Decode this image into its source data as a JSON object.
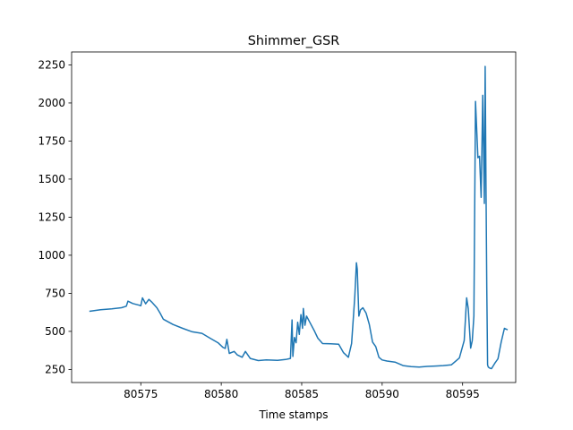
{
  "chart_data": {
    "type": "line",
    "title": "Shimmer_GSR",
    "xlabel": "Time stamps",
    "ylabel": "",
    "xlim": [
      80570.7,
      80598.3
    ],
    "ylim": [
      164,
      2335
    ],
    "xticks": [
      80575,
      80580,
      80585,
      80590,
      80595
    ],
    "yticks": [
      250,
      500,
      750,
      1000,
      1250,
      1500,
      1750,
      2000,
      2250
    ],
    "grid": false,
    "series": [
      {
        "color": "#1f77b4",
        "x": [
          80571.8,
          80572.5,
          80573.2,
          80573.8,
          80574.1,
          80574.2,
          80574.5,
          80574.9,
          80575.0,
          80575.1,
          80575.3,
          80575.5,
          80575.7,
          80576.0,
          80576.2,
          80576.4,
          80577.0,
          80577.6,
          80578.2,
          80578.8,
          80579.3,
          80579.8,
          80580.1,
          80580.25,
          80580.35,
          80580.5,
          80580.8,
          80581.0,
          80581.3,
          80581.5,
          80581.8,
          80582.3,
          80582.8,
          80583.5,
          80584.0,
          80584.3,
          80584.4,
          80584.45,
          80584.55,
          80584.65,
          80584.75,
          80584.85,
          80584.95,
          80585.05,
          80585.1,
          80585.2,
          80585.3,
          80585.5,
          80585.8,
          80586.0,
          80586.3,
          80586.8,
          80587.3,
          80587.6,
          80587.9,
          80588.1,
          80588.3,
          80588.4,
          80588.45,
          80588.55,
          80588.65,
          80588.8,
          80589.0,
          80589.2,
          80589.4,
          80589.6,
          80589.8,
          80590.0,
          80590.3,
          80590.8,
          80591.3,
          80591.8,
          80592.3,
          80592.8,
          80593.3,
          80593.8,
          80594.3,
          80594.8,
          80595.1,
          80595.25,
          80595.35,
          80595.5,
          80595.6,
          80595.7,
          80595.8,
          80595.95,
          80596.05,
          80596.15,
          80596.25,
          80596.35,
          80596.4,
          80596.45,
          80596.5,
          80596.55,
          80596.6,
          80596.65,
          80596.7,
          80596.8,
          80597.0,
          80597.2,
          80597.4,
          80597.6,
          80597.8
        ],
        "y": [
          632,
          642,
          648,
          655,
          665,
          698,
          683,
          672,
          668,
          720,
          681,
          710,
          690,
          655,
          620,
          580,
          545,
          520,
          497,
          487,
          455,
          425,
          395,
          388,
          448,
          355,
          368,
          345,
          330,
          368,
          322,
          308,
          312,
          310,
          315,
          322,
          575,
          335,
          460,
          425,
          560,
          480,
          610,
          520,
          650,
          540,
          600,
          560,
          500,
          455,
          420,
          418,
          415,
          360,
          330,
          420,
          730,
          950,
          910,
          600,
          640,
          655,
          620,
          545,
          430,
          400,
          330,
          312,
          305,
          298,
          275,
          268,
          265,
          270,
          272,
          275,
          280,
          325,
          440,
          720,
          650,
          390,
          440,
          600,
          2010,
          1640,
          1650,
          1380,
          2050,
          1340,
          2240,
          1480,
          780,
          280,
          265,
          262,
          258,
          255,
          290,
          320,
          430,
          520,
          510
        ]
      }
    ]
  }
}
